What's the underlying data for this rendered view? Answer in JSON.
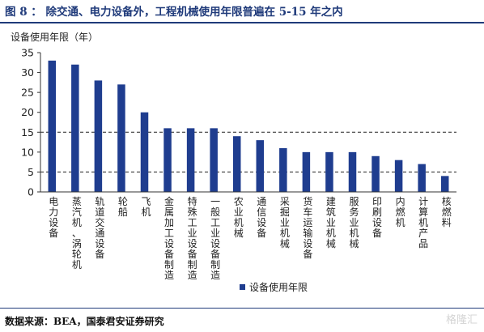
{
  "figure": {
    "title": "图 8 ： 除交通、电力设备外，工程机械使用年限普遍在 5-15 年之内",
    "source": "数据来源：BEA，国泰君安证券研究",
    "watermark": "格隆汇"
  },
  "colors": {
    "bar": "#1f3d8f",
    "accent": "#1f3a7a",
    "axis": "#333333",
    "reference_line": "#222222"
  },
  "chart_data": {
    "type": "bar",
    "ylabel": "设备使用年限（年）",
    "ylim": [
      0,
      35
    ],
    "yticks": [
      0,
      5,
      10,
      15,
      20,
      25,
      30,
      35
    ],
    "categories": [
      "电力设备",
      "蒸汽机、涡轮机",
      "轨道交通设备",
      "轮船",
      "飞机",
      "金属加工设备制造",
      "特殊工业设备制造",
      "一般工业设备制造",
      "农业机械",
      "通信设备",
      "采掘业机械",
      "货车运输设备",
      "建筑业机械",
      "服务业机械",
      "印刷设备",
      "内燃机",
      "计算机产品",
      "核燃料"
    ],
    "series": [
      {
        "name": "设备使用年限",
        "values": [
          33,
          32,
          28,
          27,
          20,
          16,
          16,
          16,
          14,
          13,
          11,
          10,
          10,
          10,
          9,
          8,
          7,
          4
        ]
      }
    ],
    "reference_lines": [
      5,
      15
    ],
    "legend_position": "bottom-right",
    "grid": false
  }
}
